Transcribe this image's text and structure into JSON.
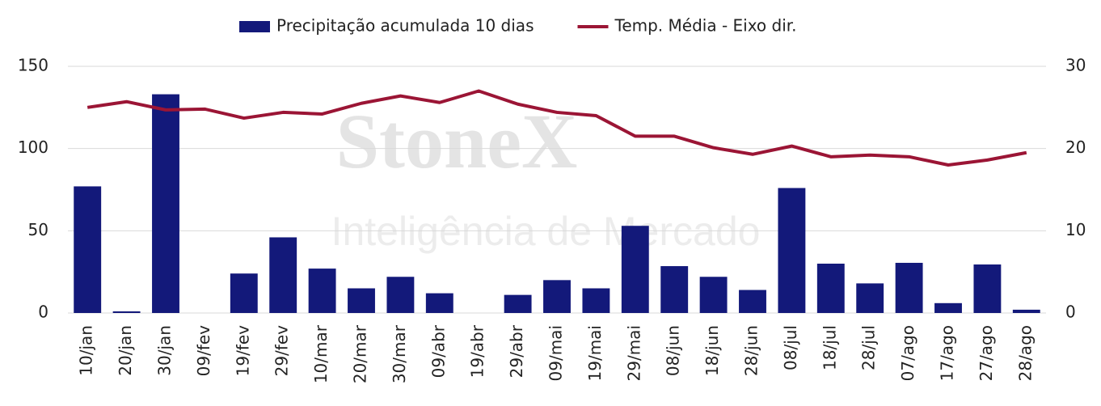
{
  "chart_data": {
    "type": "bar-line",
    "watermark": [
      "StoneX",
      "Inteligência de Mercado"
    ],
    "categories": [
      "10/jan",
      "20/jan",
      "30/jan",
      "09/fev",
      "19/fev",
      "29/fev",
      "10/mar",
      "20/mar",
      "30/mar",
      "09/abr",
      "19/abr",
      "29/abr",
      "09/mai",
      "19/mai",
      "29/mai",
      "08/jun",
      "18/jun",
      "28/jun",
      "08/jul",
      "18/jul",
      "28/jul",
      "07/ago",
      "17/ago",
      "27/ago",
      "28/ago"
    ],
    "series": [
      {
        "name": "Precipitação acumulada 10 dias",
        "type": "bar",
        "color": "#13197a",
        "values": [
          77,
          1,
          133,
          0,
          24,
          46,
          27,
          15,
          22,
          12,
          0,
          11,
          20,
          15,
          53,
          28.5,
          22,
          14,
          76,
          30,
          18,
          30.5,
          6,
          29.5,
          2
        ]
      },
      {
        "name": "Temp. Média - Eixo dir.",
        "type": "line",
        "axis": "y2",
        "color": "#9b1535",
        "values": [
          25.0,
          25.7,
          24.7,
          24.8,
          23.7,
          24.4,
          24.2,
          25.5,
          26.4,
          25.6,
          27.0,
          25.4,
          24.4,
          24.0,
          21.5,
          21.5,
          20.1,
          19.3,
          20.3,
          19.0,
          19.2,
          19.0,
          18.0,
          18.6,
          19.5
        ]
      }
    ],
    "ylim": [
      0,
      150
    ],
    "yticks": [
      0,
      50,
      100,
      150
    ],
    "y2lim": [
      0,
      30
    ],
    "y2ticks": [
      0,
      10,
      20,
      30
    ],
    "grid": true,
    "legend": "top"
  }
}
